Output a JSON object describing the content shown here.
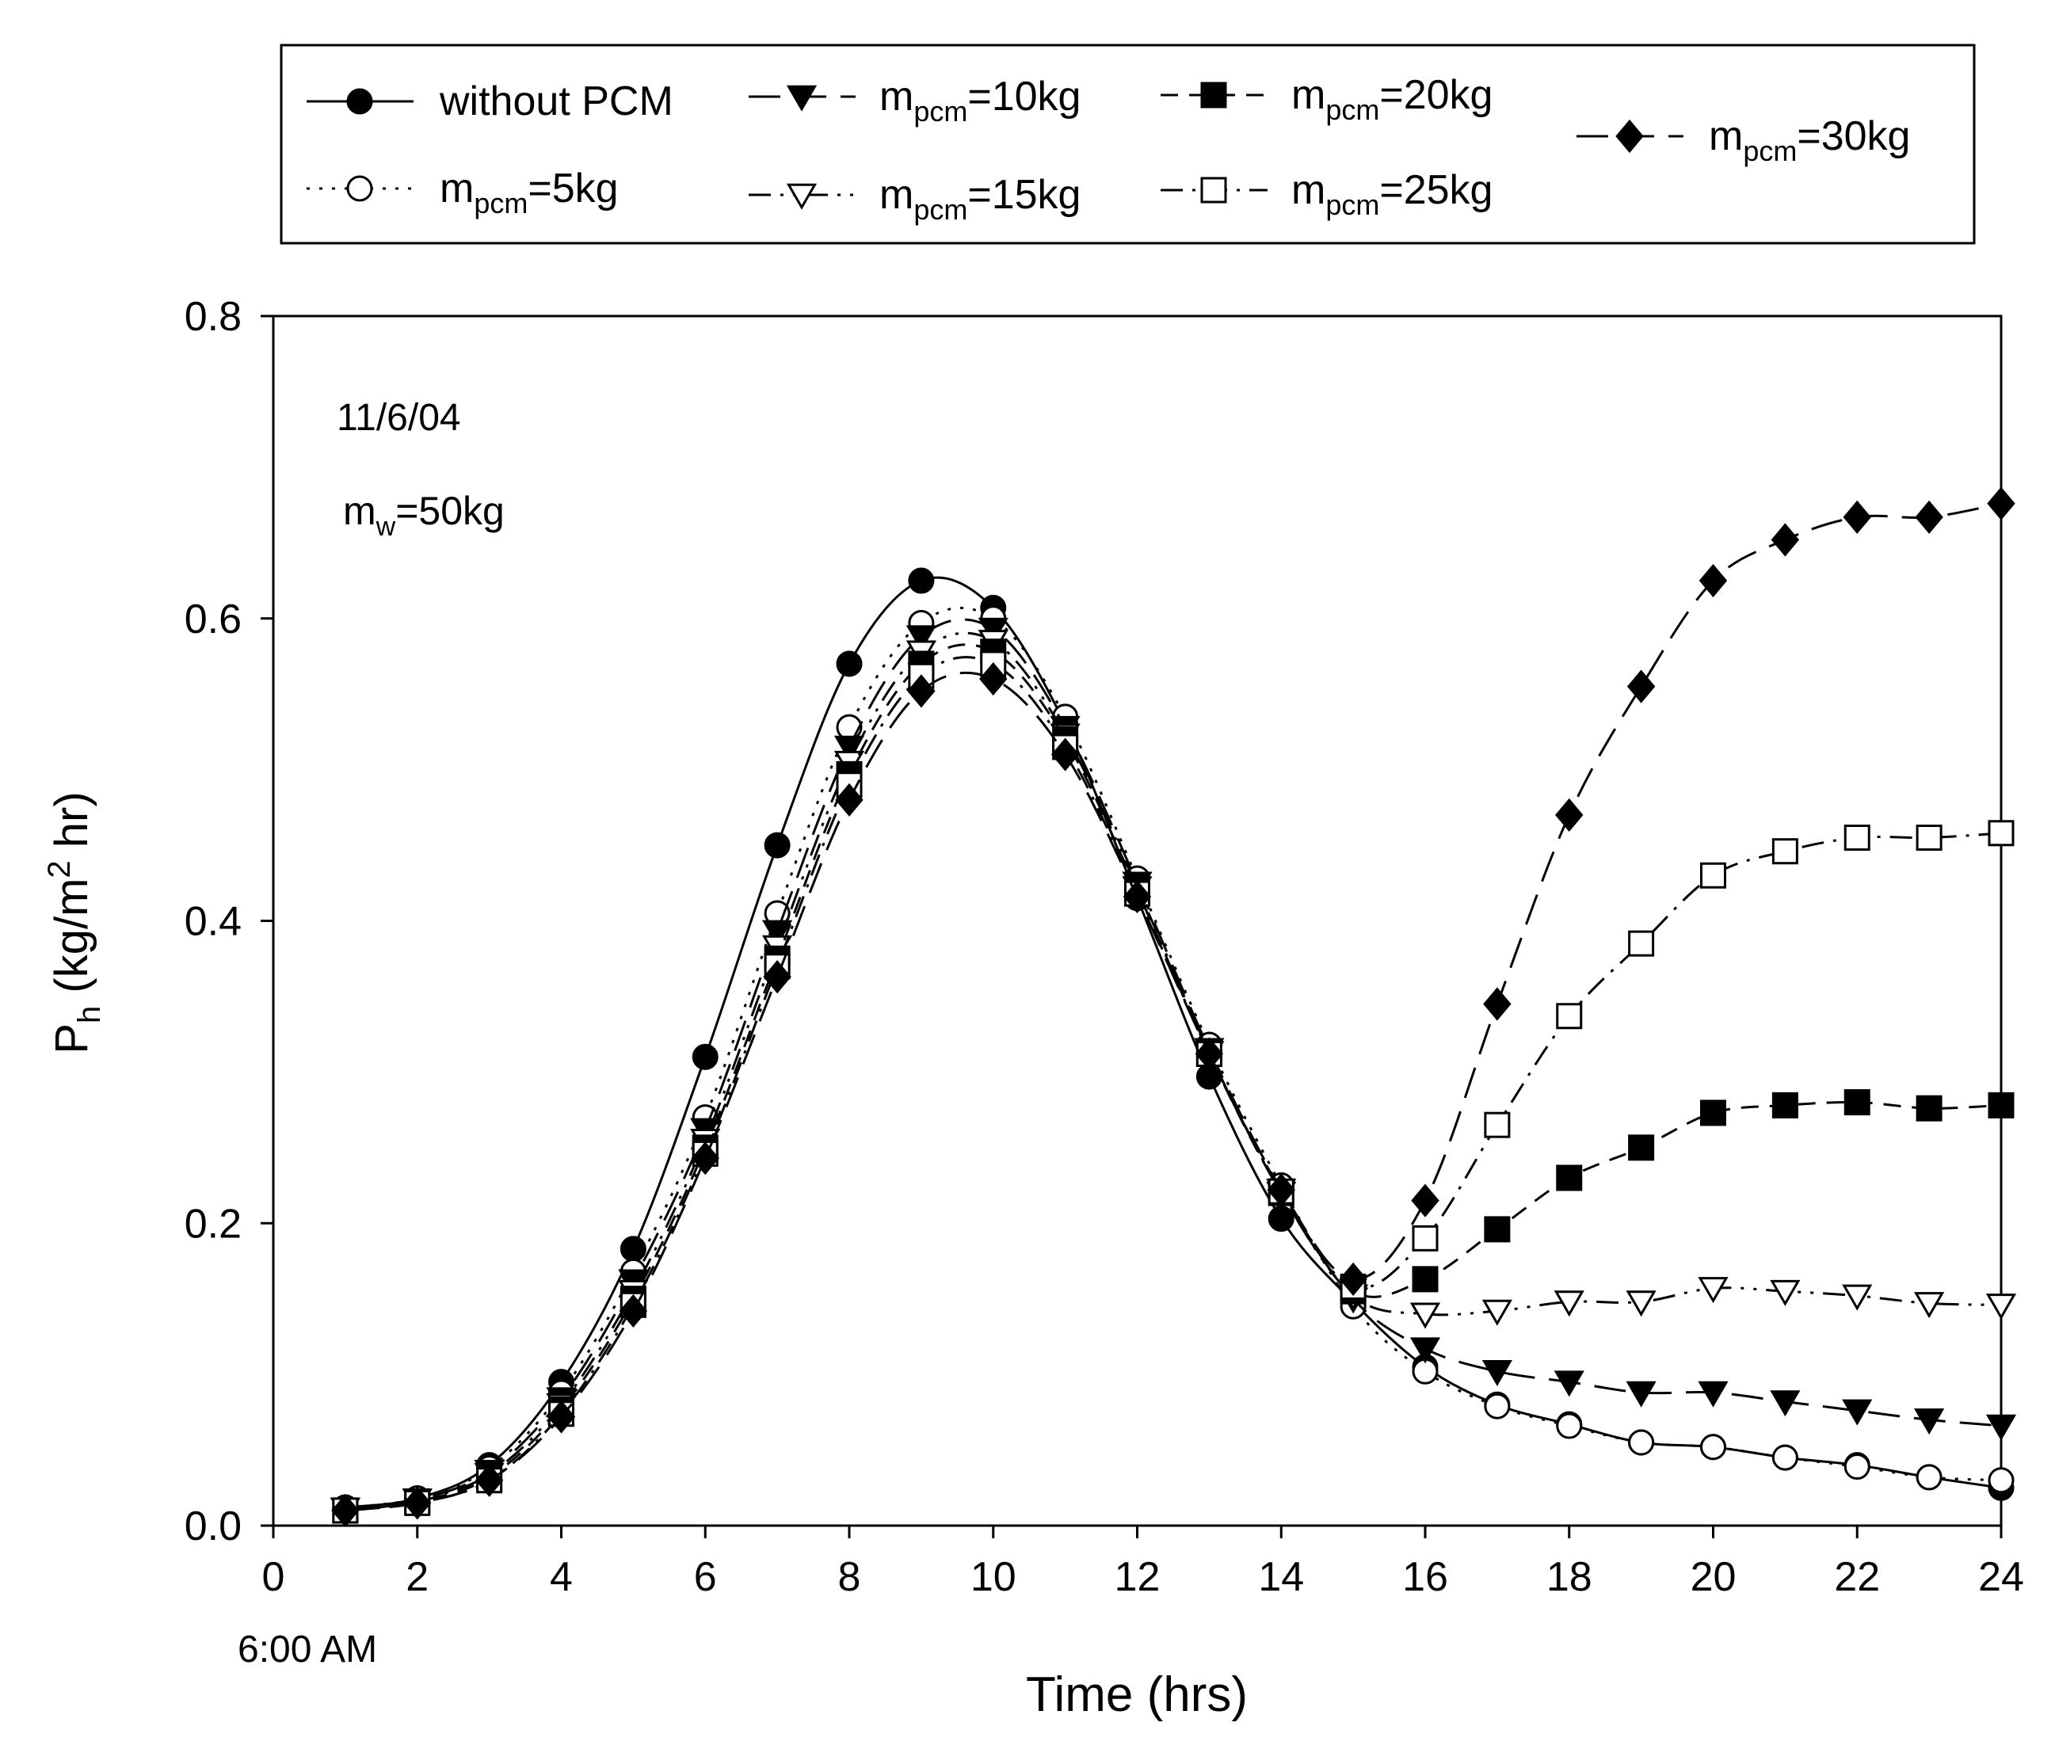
{
  "chart_data": {
    "type": "line",
    "title": "",
    "xlabel": "Time (hrs)",
    "ylabel_main": "P",
    "ylabel_sub": "h",
    "ylabel_unit_pre": " (kg/m",
    "ylabel_unit_sup": "2",
    "ylabel_unit_post": " hr)",
    "xlim": [
      0,
      24
    ],
    "ylim": [
      0.0,
      0.8
    ],
    "xticks": [
      0,
      2,
      4,
      6,
      8,
      10,
      12,
      14,
      16,
      18,
      20,
      22,
      24
    ],
    "xtick_labels": [
      "0",
      "2",
      "4",
      "6",
      "8",
      "10",
      "12",
      "14",
      "16",
      "18",
      "20",
      "22",
      "24"
    ],
    "yticks": [
      0.0,
      0.2,
      0.4,
      0.6,
      0.8
    ],
    "ytick_labels": [
      "0.0",
      "0.2",
      "0.4",
      "0.6",
      "0.8"
    ],
    "x_origin_note": "6:00 AM",
    "annotations": {
      "date": "11/6/04",
      "mass_main": "m",
      "mass_sub": "w",
      "mass_value": "=50kg"
    },
    "legend_position": "top",
    "series": [
      {
        "name": "without PCM",
        "label_main": "without PCM",
        "label_sub": "",
        "label_value": "",
        "marker": "circle",
        "filled": true,
        "dash": "solid",
        "x": [
          1,
          2,
          3,
          4,
          5,
          6,
          7,
          8,
          9,
          10,
          11,
          12,
          13,
          14,
          15,
          16,
          17,
          18,
          19,
          20,
          21,
          22,
          23,
          24
        ],
        "values": [
          0.012,
          0.018,
          0.04,
          0.095,
          0.183,
          0.31,
          0.45,
          0.57,
          0.625,
          0.607,
          0.53,
          0.415,
          0.297,
          0.203,
          0.148,
          0.105,
          0.08,
          0.067,
          0.055,
          0.052,
          0.045,
          0.04,
          0.032,
          0.025
        ]
      },
      {
        "name": "m_pcm=5kg",
        "label_main": "m",
        "label_sub": "pcm",
        "label_value": "=5kg",
        "marker": "circle",
        "filled": false,
        "dash": "dotted",
        "x": [
          1,
          2,
          3,
          4,
          5,
          6,
          7,
          8,
          9,
          10,
          11,
          12,
          13,
          14,
          15,
          16,
          17,
          18,
          19,
          20,
          21,
          22,
          23,
          24
        ],
        "values": [
          0.012,
          0.018,
          0.038,
          0.088,
          0.168,
          0.27,
          0.405,
          0.528,
          0.597,
          0.6,
          0.535,
          0.428,
          0.318,
          0.225,
          0.145,
          0.102,
          0.079,
          0.066,
          0.055,
          0.052,
          0.045,
          0.039,
          0.032,
          0.03
        ]
      },
      {
        "name": "m_pcm=10kg",
        "label_main": "m",
        "label_sub": "pcm",
        "label_value": "=10kg",
        "marker": "triangle-down",
        "filled": true,
        "dash": "longdash",
        "x": [
          1,
          2,
          3,
          4,
          5,
          6,
          7,
          8,
          9,
          10,
          11,
          12,
          13,
          14,
          15,
          16,
          17,
          18,
          19,
          20,
          21,
          22,
          23,
          24
        ],
        "values": [
          0.011,
          0.017,
          0.036,
          0.084,
          0.162,
          0.262,
          0.393,
          0.515,
          0.588,
          0.593,
          0.528,
          0.425,
          0.315,
          0.222,
          0.15,
          0.117,
          0.102,
          0.095,
          0.088,
          0.088,
          0.082,
          0.076,
          0.07,
          0.066
        ]
      },
      {
        "name": "m_pcm=15kg",
        "label_main": "m",
        "label_sub": "pcm",
        "label_value": "=15kg",
        "marker": "triangle-down",
        "filled": false,
        "dash": "dashdotdot",
        "x": [
          1,
          2,
          3,
          4,
          5,
          6,
          7,
          8,
          9,
          10,
          11,
          12,
          13,
          14,
          15,
          16,
          17,
          18,
          19,
          20,
          21,
          22,
          23,
          24
        ],
        "values": [
          0.011,
          0.017,
          0.034,
          0.08,
          0.155,
          0.255,
          0.383,
          0.505,
          0.578,
          0.585,
          0.523,
          0.422,
          0.313,
          0.22,
          0.152,
          0.14,
          0.142,
          0.148,
          0.148,
          0.157,
          0.155,
          0.152,
          0.147,
          0.146
        ]
      },
      {
        "name": "m_pcm=20kg",
        "label_main": "m",
        "label_sub": "pcm",
        "label_value": "=20kg",
        "marker": "square",
        "filled": true,
        "dash": "dash",
        "x": [
          1,
          2,
          3,
          4,
          5,
          6,
          7,
          8,
          9,
          10,
          11,
          12,
          13,
          14,
          15,
          16,
          17,
          18,
          19,
          20,
          21,
          22,
          23,
          24
        ],
        "values": [
          0.01,
          0.016,
          0.032,
          0.077,
          0.15,
          0.25,
          0.375,
          0.497,
          0.57,
          0.578,
          0.52,
          0.42,
          0.312,
          0.22,
          0.155,
          0.163,
          0.196,
          0.23,
          0.25,
          0.273,
          0.278,
          0.28,
          0.276,
          0.278
        ]
      },
      {
        "name": "m_pcm=25kg",
        "label_main": "m",
        "label_sub": "pcm",
        "label_value": "=25kg",
        "marker": "square",
        "filled": false,
        "dash": "dashdot",
        "x": [
          1,
          2,
          3,
          4,
          5,
          6,
          7,
          8,
          9,
          10,
          11,
          12,
          13,
          14,
          15,
          16,
          17,
          18,
          19,
          20,
          21,
          22,
          23,
          24
        ],
        "values": [
          0.01,
          0.015,
          0.03,
          0.074,
          0.146,
          0.246,
          0.37,
          0.49,
          0.562,
          0.57,
          0.515,
          0.418,
          0.312,
          0.221,
          0.158,
          0.19,
          0.265,
          0.337,
          0.385,
          0.43,
          0.446,
          0.455,
          0.455,
          0.458
        ]
      },
      {
        "name": "m_pcm=30kg",
        "label_main": "m",
        "label_sub": "pcm",
        "label_value": "=30kg",
        "marker": "diamond",
        "filled": true,
        "dash": "longdash",
        "x": [
          1,
          2,
          3,
          4,
          5,
          6,
          7,
          8,
          9,
          10,
          11,
          12,
          13,
          14,
          15,
          16,
          17,
          18,
          19,
          20,
          21,
          22,
          23,
          24
        ],
        "values": [
          0.01,
          0.015,
          0.03,
          0.072,
          0.142,
          0.243,
          0.363,
          0.48,
          0.552,
          0.56,
          0.51,
          0.416,
          0.312,
          0.222,
          0.163,
          0.215,
          0.345,
          0.47,
          0.555,
          0.625,
          0.652,
          0.667,
          0.667,
          0.676
        ]
      }
    ]
  }
}
